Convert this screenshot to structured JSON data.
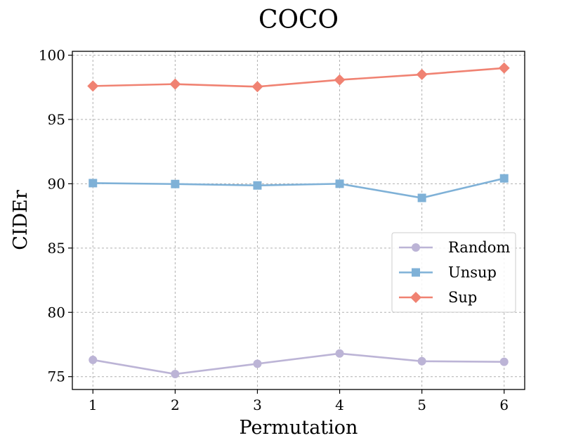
{
  "chart_data": {
    "type": "line",
    "title": "COCO",
    "xlabel": "Permutation",
    "ylabel": "CIDEr",
    "x": [
      1,
      2,
      3,
      4,
      5,
      6
    ],
    "xticks": [
      "1",
      "2",
      "3",
      "4",
      "5",
      "6"
    ],
    "yticks": [
      "75",
      "80",
      "85",
      "90",
      "95",
      "100"
    ],
    "ylim": [
      74,
      100.3
    ],
    "xlim": [
      0.75,
      6.25
    ],
    "grid": true,
    "legend_position": "center-right",
    "series": [
      {
        "name": "Random",
        "values": [
          76.3,
          75.2,
          76.0,
          76.8,
          76.2,
          76.15
        ],
        "color": "#bcb4d6",
        "marker": "circle"
      },
      {
        "name": "Unsup",
        "values": [
          90.05,
          89.98,
          89.87,
          90.0,
          88.9,
          90.42
        ],
        "color": "#7fb1d7",
        "marker": "square"
      },
      {
        "name": "Sup",
        "values": [
          97.6,
          97.75,
          97.55,
          98.08,
          98.5,
          99.0
        ],
        "color": "#f08272",
        "marker": "diamond"
      }
    ]
  }
}
